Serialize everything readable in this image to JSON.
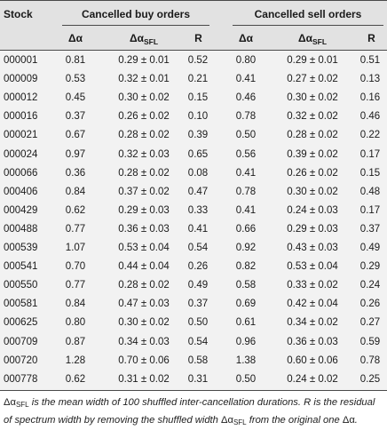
{
  "table": {
    "header": {
      "stock": "Stock",
      "group_buy": "Cancelled buy orders",
      "group_sell": "Cancelled sell orders",
      "col_da": "Δα",
      "col_dasfl_base": "Δα",
      "col_dasfl_sub": "SFL",
      "col_r": "R"
    },
    "rows": [
      {
        "stock": "000001",
        "b_da": "0.81",
        "b_sfl": "0.29 ± 0.01",
        "b_r": "0.52",
        "s_da": "0.80",
        "s_sfl": "0.29 ± 0.01",
        "s_r": "0.51"
      },
      {
        "stock": "000009",
        "b_da": "0.53",
        "b_sfl": "0.32 ± 0.01",
        "b_r": "0.21",
        "s_da": "0.41",
        "s_sfl": "0.27 ± 0.02",
        "s_r": "0.13"
      },
      {
        "stock": "000012",
        "b_da": "0.45",
        "b_sfl": "0.30 ± 0.02",
        "b_r": "0.15",
        "s_da": "0.46",
        "s_sfl": "0.30 ± 0.02",
        "s_r": "0.16"
      },
      {
        "stock": "000016",
        "b_da": "0.37",
        "b_sfl": "0.26 ± 0.02",
        "b_r": "0.10",
        "s_da": "0.78",
        "s_sfl": "0.32 ± 0.02",
        "s_r": "0.46"
      },
      {
        "stock": "000021",
        "b_da": "0.67",
        "b_sfl": "0.28 ± 0.02",
        "b_r": "0.39",
        "s_da": "0.50",
        "s_sfl": "0.28 ± 0.02",
        "s_r": "0.22"
      },
      {
        "stock": "000024",
        "b_da": "0.97",
        "b_sfl": "0.32 ± 0.03",
        "b_r": "0.65",
        "s_da": "0.56",
        "s_sfl": "0.39 ± 0.02",
        "s_r": "0.17"
      },
      {
        "stock": "000066",
        "b_da": "0.36",
        "b_sfl": "0.28 ± 0.02",
        "b_r": "0.08",
        "s_da": "0.41",
        "s_sfl": "0.26 ± 0.02",
        "s_r": "0.15"
      },
      {
        "stock": "000406",
        "b_da": "0.84",
        "b_sfl": "0.37 ± 0.02",
        "b_r": "0.47",
        "s_da": "0.78",
        "s_sfl": "0.30 ± 0.02",
        "s_r": "0.48"
      },
      {
        "stock": "000429",
        "b_da": "0.62",
        "b_sfl": "0.29 ± 0.03",
        "b_r": "0.33",
        "s_da": "0.41",
        "s_sfl": "0.24 ± 0.03",
        "s_r": "0.17"
      },
      {
        "stock": "000488",
        "b_da": "0.77",
        "b_sfl": "0.36 ± 0.03",
        "b_r": "0.41",
        "s_da": "0.66",
        "s_sfl": "0.29 ± 0.03",
        "s_r": "0.37"
      },
      {
        "stock": "000539",
        "b_da": "1.07",
        "b_sfl": "0.53 ± 0.04",
        "b_r": "0.54",
        "s_da": "0.92",
        "s_sfl": "0.43 ± 0.03",
        "s_r": "0.49"
      },
      {
        "stock": "000541",
        "b_da": "0.70",
        "b_sfl": "0.44 ± 0.04",
        "b_r": "0.26",
        "s_da": "0.82",
        "s_sfl": "0.53 ± 0.04",
        "s_r": "0.29"
      },
      {
        "stock": "000550",
        "b_da": "0.77",
        "b_sfl": "0.28 ± 0.02",
        "b_r": "0.49",
        "s_da": "0.58",
        "s_sfl": "0.33 ± 0.02",
        "s_r": "0.24"
      },
      {
        "stock": "000581",
        "b_da": "0.84",
        "b_sfl": "0.47 ± 0.03",
        "b_r": "0.37",
        "s_da": "0.69",
        "s_sfl": "0.42 ± 0.04",
        "s_r": "0.26"
      },
      {
        "stock": "000625",
        "b_da": "0.80",
        "b_sfl": "0.30 ± 0.02",
        "b_r": "0.50",
        "s_da": "0.61",
        "s_sfl": "0.34 ± 0.02",
        "s_r": "0.27"
      },
      {
        "stock": "000709",
        "b_da": "0.87",
        "b_sfl": "0.34 ± 0.03",
        "b_r": "0.54",
        "s_da": "0.96",
        "s_sfl": "0.36 ± 0.03",
        "s_r": "0.59"
      },
      {
        "stock": "000720",
        "b_da": "1.28",
        "b_sfl": "0.70 ± 0.06",
        "b_r": "0.58",
        "s_da": "1.38",
        "s_sfl": "0.60 ± 0.06",
        "s_r": "0.78"
      },
      {
        "stock": "000778",
        "b_da": "0.62",
        "b_sfl": "0.31 ± 0.02",
        "b_r": "0.31",
        "s_da": "0.50",
        "s_sfl": "0.24 ± 0.02",
        "s_r": "0.25"
      }
    ]
  },
  "footnote": {
    "sym_da": "Δα",
    "sym_sub": "SFL",
    "text_1": " is the mean width of 100 shuffled inter-cancellation durations. ",
    "sym_r": "R",
    "text_2": " is the residual of spectrum width by removing the shuffled width ",
    "text_3": " from the original one ",
    "text_4": "."
  }
}
